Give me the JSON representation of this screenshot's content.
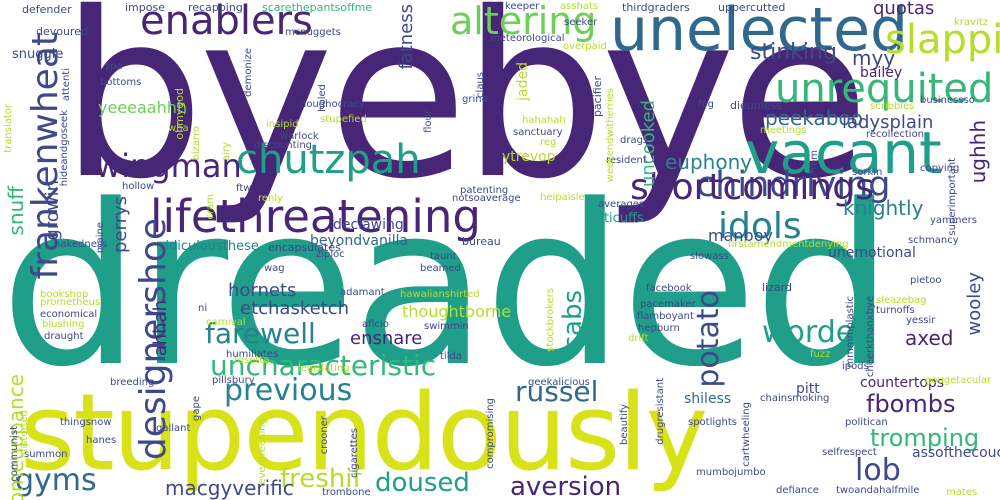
{
  "palette": {
    "background": "#ffffff",
    "dark_purple": "#482677",
    "indigo": "#3e4989",
    "blue": "#31688e",
    "teal_blue": "#26828e",
    "teal": "#1f9e89",
    "green": "#35b779",
    "light_green": "#6ece58",
    "lime": "#b5de2b",
    "yellow": "#d8e219"
  },
  "words": [
    "byebye",
    "dreaded",
    "stupendously",
    "unelected",
    "vacant",
    "lifethreatening",
    "enablers",
    "altering",
    "chutzpah",
    "chindriving",
    "unrequited",
    "slapping",
    "idols",
    "wingman",
    "shortcomings",
    "previous",
    "gyms",
    "lob",
    "aversion",
    "russel",
    "worded",
    "uncharacteristic",
    "farewell",
    "fbombs",
    "tromping",
    "doused",
    "freshif",
    "macgyverific",
    "stinking",
    "myy",
    "quotas",
    "peekaboo",
    "ladysplain",
    "knightly",
    "euphony",
    "manboy",
    "axed",
    "bailey",
    "yeeeaahhh",
    "hornets",
    "etchasketch",
    "ensnare",
    "thoughtborne",
    "assofthecouch",
    "countertops",
    "pitt",
    "shiless",
    "ytrevop",
    "fisticuffs",
    "unemotional",
    "declawing",
    "beyondvanilla",
    "ridiculousthese",
    "encapsulates",
    "bureau",
    "frankenwheat",
    "designershoe",
    "potato",
    "cabs",
    "comeuppance",
    "snuff",
    "growin",
    "perrys",
    "ahhah",
    "fatness",
    "uncooked",
    "ughhh",
    "wooley",
    "jaded",
    "snuggle",
    "kravitz",
    "defender",
    "impose",
    "recapping",
    "scarethepantsoffme",
    "keeper",
    "asshats",
    "thirdgraders",
    "uppercutted",
    "devoured",
    "mcnuggets",
    "seeker",
    "meteorological",
    "overpaid",
    "attenti",
    "spa",
    "bottoms",
    "ohmygod",
    "demonize",
    "holed",
    "claus",
    "grind",
    "pacifier",
    "dieunless",
    "businessso",
    "fog",
    "meetings",
    "scribbles",
    "recollection",
    "doughocracy",
    "hahahah",
    "sanctuary",
    "reg",
    "flour",
    "stupefied",
    "insipid",
    "warlock",
    "discounting",
    "bizarro",
    "airy",
    "wha",
    "hollow",
    "ftw",
    "renly",
    "cram",
    "notsoaverage",
    "heipaisle",
    "averages",
    "patenting",
    "drags",
    "resident",
    "copying",
    "sorkin",
    "rem",
    "superimportant",
    "yammers",
    "schmancy",
    "firstamendmentdenying",
    "slowass",
    "taunt",
    "beamed",
    "hawaiianshirted",
    "adamant",
    "facebook",
    "pacemaker",
    "flamboyant",
    "hepburn",
    "drift",
    "lizard",
    "pietoo",
    "sleazebag",
    "turnoffs",
    "yessir",
    "mmmmplastic",
    "cheerkthanxbye",
    "fuzz",
    "ipods",
    "gougetacular",
    "chainsmoking",
    "cartwheeling",
    "spotlights",
    "politican",
    "selfrespect",
    "defiance",
    "twoandahalfmile",
    "mates",
    "mumbojumbo",
    "drugresistant",
    "beautify",
    "compromising",
    "crooner",
    "cigarettes",
    "trombone",
    "evergreening",
    "gallant",
    "hanes",
    "thingsnow",
    "summon",
    "communist",
    "distorted",
    "pillsbury",
    "breeding",
    "gape",
    "legislating",
    "humiliates",
    "rosetta",
    "carnival",
    "aflcio",
    "swimmin",
    "tilda",
    "stockbrokers",
    "geekalicious",
    "bookshop",
    "prometheus",
    "economical",
    "blushing",
    "draught",
    "ziploc",
    "wag",
    "ni",
    "nakedness",
    "maine",
    "hideandgoseek",
    "translator",
    "weekendwitherries"
  ]
}
